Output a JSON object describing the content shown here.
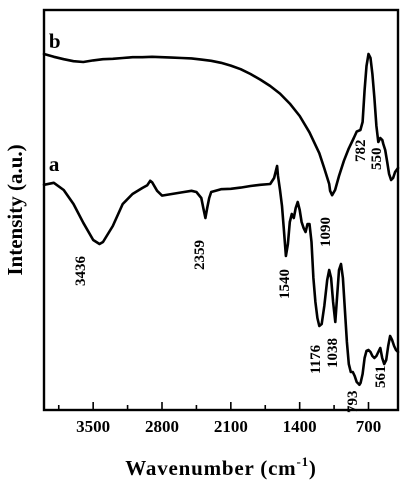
{
  "chart_data": {
    "type": "line",
    "xlabel": "Wavenumber (cm",
    "xlabel_sup": "-1",
    "xlabel_close": ")",
    "ylabel": "Intensity (a.u.)",
    "xlim": [
      4000,
      400
    ],
    "x_reversed": true,
    "xticks": [
      3500,
      2800,
      2100,
      1400,
      700
    ],
    "ylim": [
      0,
      100
    ],
    "y_ticks_shown": false,
    "grid": false,
    "legend": "none",
    "series": [
      {
        "name": "b",
        "x": [
          4000,
          3900,
          3800,
          3700,
          3600,
          3500,
          3400,
          3300,
          3200,
          3100,
          3000,
          2900,
          2800,
          2700,
          2600,
          2500,
          2400,
          2300,
          2200,
          2100,
          2000,
          1900,
          1800,
          1700,
          1600,
          1500,
          1400,
          1300,
          1200,
          1150,
          1100,
          1090,
          1070,
          1040,
          1000,
          950,
          900,
          850,
          820,
          782,
          760,
          740,
          720,
          700,
          680,
          660,
          640,
          620,
          600,
          580,
          560,
          550,
          530,
          510,
          490,
          470,
          450,
          430,
          400
        ],
        "y": [
          89.0,
          88.3,
          87.7,
          87.2,
          87.0,
          87.4,
          87.7,
          87.8,
          88.0,
          88.2,
          88.2,
          88.3,
          88.2,
          88.1,
          88.0,
          87.9,
          87.6,
          87.3,
          86.8,
          86.1,
          85.2,
          84.0,
          82.6,
          81.0,
          79.1,
          76.6,
          73.5,
          69.4,
          64.2,
          60.4,
          56.5,
          54.8,
          53.7,
          55.0,
          58.5,
          62.3,
          65.4,
          68.0,
          69.6,
          70.0,
          72.0,
          80.0,
          86.0,
          89.0,
          88.0,
          84.0,
          78.0,
          71.0,
          67.0,
          68.0,
          67.5,
          66.5,
          65.0,
          62.0,
          59.0,
          57.5,
          58.0,
          59.5,
          60.5
        ]
      },
      {
        "name": "a",
        "x": [
          4000,
          3900,
          3800,
          3700,
          3600,
          3500,
          3436,
          3400,
          3300,
          3200,
          3100,
          3000,
          2950,
          2920,
          2900,
          2850,
          2800,
          2700,
          2600,
          2500,
          2450,
          2400,
          2380,
          2359,
          2340,
          2320,
          2300,
          2200,
          2100,
          2000,
          1900,
          1800,
          1700,
          1660,
          1630,
          1620,
          1600,
          1580,
          1560,
          1540,
          1520,
          1500,
          1480,
          1460,
          1440,
          1420,
          1400,
          1380,
          1360,
          1340,
          1320,
          1300,
          1280,
          1260,
          1240,
          1220,
          1200,
          1176,
          1150,
          1120,
          1100,
          1080,
          1060,
          1038,
          1020,
          1000,
          980,
          960,
          940,
          920,
          900,
          880,
          860,
          840,
          820,
          800,
          793,
          780,
          760,
          740,
          720,
          700,
          680,
          660,
          640,
          620,
          600,
          580,
          561,
          540,
          520,
          500,
          480,
          460,
          440,
          420,
          400
        ],
        "y": [
          56.3,
          56.8,
          55.0,
          51.5,
          46.8,
          42.5,
          41.5,
          42.0,
          46.0,
          51.5,
          54.0,
          55.5,
          56.2,
          57.3,
          56.9,
          54.8,
          53.6,
          54.0,
          54.4,
          54.8,
          54.5,
          53.0,
          50.5,
          48.0,
          50.5,
          53.0,
          54.5,
          55.2,
          55.3,
          55.6,
          56.0,
          56.3,
          56.5,
          58.0,
          61.0,
          58.5,
          55.0,
          51.0,
          45.0,
          38.5,
          41.5,
          47.0,
          49.0,
          48.0,
          50.5,
          52.0,
          50.0,
          47.0,
          45.5,
          44.5,
          46.5,
          46.5,
          42.0,
          33.0,
          27.0,
          23.0,
          21.0,
          21.5,
          26.0,
          32.5,
          35.0,
          33.0,
          27.0,
          22.0,
          28.0,
          35.0,
          36.5,
          33.0,
          25.0,
          17.0,
          11.5,
          9.5,
          9.5,
          8.5,
          7.0,
          6.5,
          6.3,
          6.8,
          9.0,
          13.0,
          14.8,
          15.0,
          14.5,
          13.5,
          13.0,
          13.5,
          14.5,
          15.5,
          13.0,
          11.5,
          12.5,
          16.0,
          18.5,
          17.5,
          16.0,
          15.0,
          14.5
        ]
      }
    ],
    "series_labels": [
      {
        "series": "b",
        "text": "b"
      },
      {
        "series": "a",
        "text": "a"
      }
    ],
    "annotations": [
      {
        "x": 3436,
        "text": "3436"
      },
      {
        "x": 2359,
        "text": "2359"
      },
      {
        "x": 1540,
        "text": "1540"
      },
      {
        "x": 1176,
        "text": "1176"
      },
      {
        "x": 1090,
        "text": "1090"
      },
      {
        "x": 1038,
        "text": "1038"
      },
      {
        "x": 793,
        "text": "793"
      },
      {
        "x": 782,
        "text": "782"
      },
      {
        "x": 561,
        "text": "561"
      },
      {
        "x": 550,
        "text": "550"
      }
    ]
  }
}
